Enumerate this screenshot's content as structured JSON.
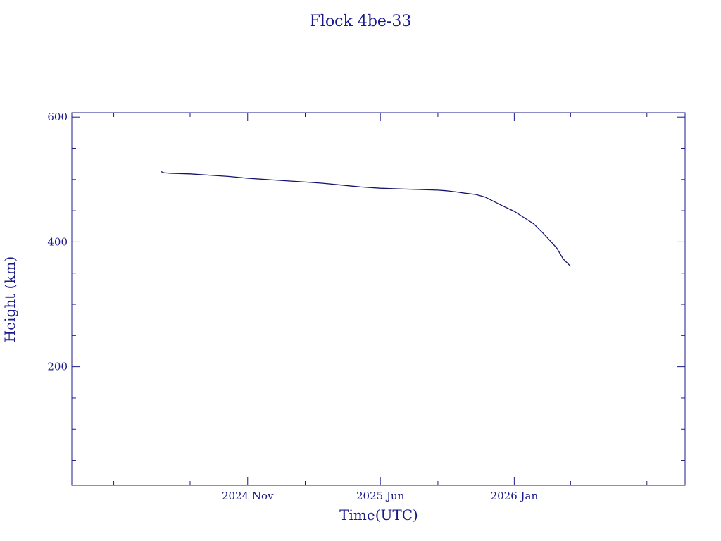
{
  "colors": {
    "ink": "#1a1a8c",
    "line": "#14146e",
    "background": "#ffffff"
  },
  "chart_data": {
    "type": "line",
    "title": "Flock 4be-33",
    "xlabel": "Time(UTC)",
    "ylabel": "Height (km)",
    "x_tick_labels": [
      "2024 Nov",
      "2025 Jun",
      "2026 Jan"
    ],
    "x_ticks": [
      "2024-11-01",
      "2025-06-01",
      "2026-01-01"
    ],
    "y_tick_labels": [
      "200",
      "400",
      "600"
    ],
    "y_ticks": [
      200,
      400,
      600
    ],
    "xlim": [
      "2024-01-25",
      "2026-10-01"
    ],
    "ylim": [
      10,
      607
    ],
    "grid": false,
    "series": [
      {
        "x": [
          "2024-06-15",
          "2024-06-20",
          "2024-07-01",
          "2024-08-01",
          "2024-09-01",
          "2024-10-01",
          "2024-11-01",
          "2024-12-01",
          "2025-01-01",
          "2025-02-01",
          "2025-03-01",
          "2025-04-01",
          "2025-05-01",
          "2025-06-01",
          "2025-07-01",
          "2025-08-01",
          "2025-09-01",
          "2025-09-15",
          "2025-10-01",
          "2025-10-15",
          "2025-11-01",
          "2025-11-15",
          "2025-12-01",
          "2025-12-15",
          "2026-01-01",
          "2026-01-15",
          "2026-02-01",
          "2026-02-15",
          "2026-03-01",
          "2026-03-10",
          "2026-03-20",
          "2026-04-01"
        ],
        "y": [
          513,
          511,
          510,
          509,
          507,
          505,
          502,
          500,
          498,
          496,
          494,
          491,
          488,
          486,
          485,
          484,
          483,
          482,
          480,
          478,
          476,
          472,
          464,
          457,
          449,
          440,
          429,
          415,
          400,
          390,
          373,
          361
        ]
      }
    ]
  }
}
